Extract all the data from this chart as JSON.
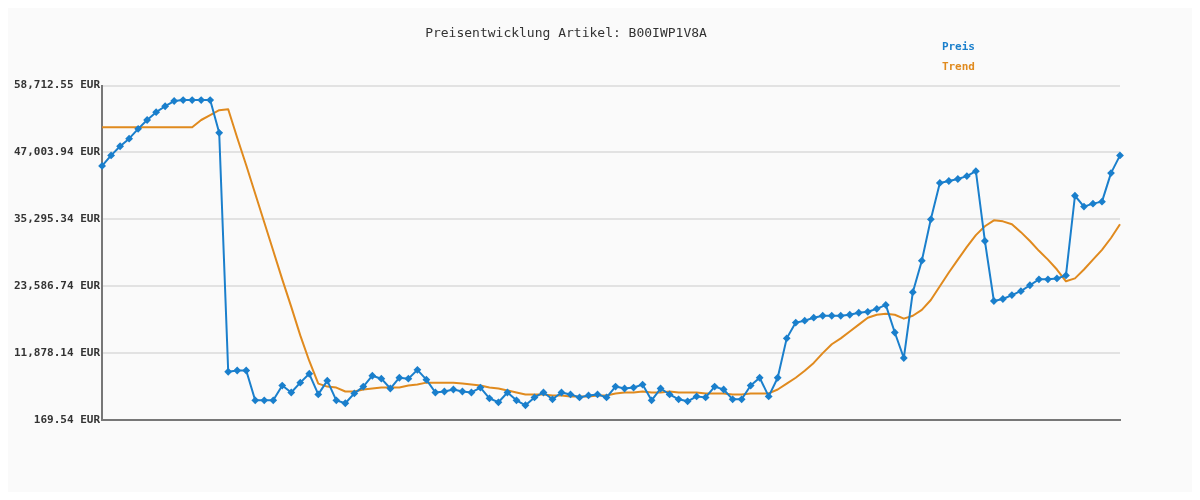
{
  "chart_data": {
    "type": "line",
    "title": "Preisentwicklung Artikel: B00IWP1V8A",
    "categories": [
      null,
      null,
      null,
      null,
      null,
      null,
      null,
      null,
      null,
      null,
      null,
      null,
      null,
      null,
      null,
      null,
      null,
      null,
      null,
      null,
      null,
      null,
      null,
      null,
      null,
      null,
      null,
      null,
      null,
      null,
      null,
      null,
      null,
      null,
      null,
      null,
      null,
      null,
      null,
      null,
      null,
      null,
      null,
      null,
      null,
      null,
      null,
      null,
      null,
      null,
      null,
      null,
      null,
      null,
      null,
      null,
      null,
      null,
      null,
      null,
      null,
      null,
      null,
      null,
      null,
      null,
      null,
      null,
      null,
      null,
      null,
      null,
      null,
      null,
      null,
      null,
      null,
      null,
      null,
      null,
      null,
      null,
      null,
      null,
      null,
      null,
      null,
      null,
      null,
      null,
      null,
      null,
      null,
      null,
      null,
      null,
      null,
      null,
      null,
      null,
      null,
      null,
      null,
      null,
      null,
      null,
      null,
      null,
      null,
      null,
      null,
      null,
      null,
      null
    ],
    "series": [
      {
        "name": "Preis",
        "color": "#1a7fcc",
        "marker": "diamond",
        "values": [
          44650,
          46490,
          48090,
          49420,
          51140,
          52690,
          54060,
          55100,
          56010,
          56180,
          56180,
          56180,
          56180,
          50450,
          8610,
          8830,
          8830,
          3610,
          3610,
          3610,
          6200,
          4990,
          6710,
          8260,
          4650,
          7060,
          3610,
          3100,
          4820,
          6020,
          7920,
          7400,
          5680,
          7570,
          7400,
          8950,
          7230,
          4990,
          5160,
          5510,
          5160,
          4990,
          5850,
          3960,
          3270,
          4990,
          3610,
          2750,
          4130,
          4990,
          3790,
          4990,
          4650,
          4130,
          4470,
          4650,
          4130,
          6020,
          5680,
          5850,
          6370,
          3610,
          5680,
          4650,
          3790,
          3440,
          4300,
          4130,
          6020,
          5510,
          3790,
          3790,
          6200,
          7570,
          4300,
          7570,
          14460,
          17220,
          17560,
          18080,
          18420,
          18420,
          18420,
          18590,
          18940,
          19110,
          19630,
          20320,
          15490,
          11020,
          22550,
          28060,
          35300,
          41670,
          42010,
          42360,
          42870,
          43730,
          31510,
          21000,
          21350,
          22040,
          22730,
          23760,
          24790,
          24790,
          24960,
          25480,
          39430,
          37530,
          38050,
          38400,
          43390,
          46490
        ]
      },
      {
        "name": "Trend",
        "color": "#e08a1e",
        "marker": "none",
        "values": [
          51430,
          51430,
          51430,
          51430,
          51430,
          51430,
          51430,
          51430,
          51430,
          51430,
          51430,
          52690,
          53550,
          54410,
          54580,
          49590,
          44770,
          39770,
          34780,
          29790,
          24790,
          19970,
          14980,
          10500,
          6540,
          6020,
          5850,
          5160,
          5160,
          5510,
          5680,
          5850,
          5850,
          5850,
          6200,
          6370,
          6710,
          6710,
          6710,
          6710,
          6540,
          6370,
          6200,
          5850,
          5680,
          5340,
          4990,
          4650,
          4650,
          4650,
          4470,
          4470,
          4300,
          4300,
          4300,
          4470,
          4470,
          4820,
          4990,
          4990,
          5160,
          4990,
          4990,
          5160,
          4990,
          4990,
          4990,
          4820,
          4820,
          4820,
          4650,
          4650,
          4820,
          4820,
          4820,
          5510,
          6540,
          7570,
          8780,
          10160,
          11880,
          13430,
          14460,
          15670,
          16870,
          18080,
          18590,
          18770,
          18590,
          17910,
          18420,
          19450,
          21180,
          23590,
          26000,
          28240,
          30470,
          32540,
          34090,
          35120,
          34950,
          34440,
          33060,
          31510,
          29790,
          28240,
          26510,
          24450,
          24960,
          26510,
          28240,
          29960,
          32030,
          34440
        ]
      }
    ],
    "ylim": [
      169.54,
      58712.55
    ],
    "yticks": [
      {
        "value": 169.54,
        "label": "169.54 EUR"
      },
      {
        "value": 11878.14,
        "label": "11,878.14 EUR"
      },
      {
        "value": 23586.74,
        "label": "23,586.74 EUR"
      },
      {
        "value": 35295.34,
        "label": "35,295.34 EUR"
      },
      {
        "value": 47003.94,
        "label": "47,003.94 EUR"
      },
      {
        "value": 58712.55,
        "label": "58,712.55 EUR"
      }
    ],
    "grid": "y",
    "legend": "top right",
    "tick_labels": "y"
  }
}
